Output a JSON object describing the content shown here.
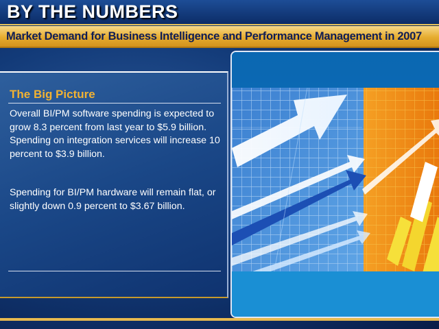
{
  "header": {
    "title": "BY THE NUMBERS",
    "subtitle": "Market Demand for Business Intelligence and Performance Management in 2007"
  },
  "panel": {
    "heading": "The Big Picture",
    "paragraph_1": "Overall BI/PM software spending is expected to grow 8.3 percent from last year to $5.9 billion. Spending on integration services will increase 10 percent to $3.9 billion.",
    "paragraph_2": "Spending for BI/PM hardware will remain flat, or slightly down 0.9 percent to $3.67 billion."
  },
  "illustration": {
    "description_icon": "growth-arrows-and-bars-icon"
  },
  "colors": {
    "navy": "#0b2456",
    "gold": "#e6ac2f",
    "heading_orange": "#f2b232",
    "art_blue": "#1787c9",
    "art_orange": "#f08a17",
    "bar_yellow": "#f6e03a"
  }
}
